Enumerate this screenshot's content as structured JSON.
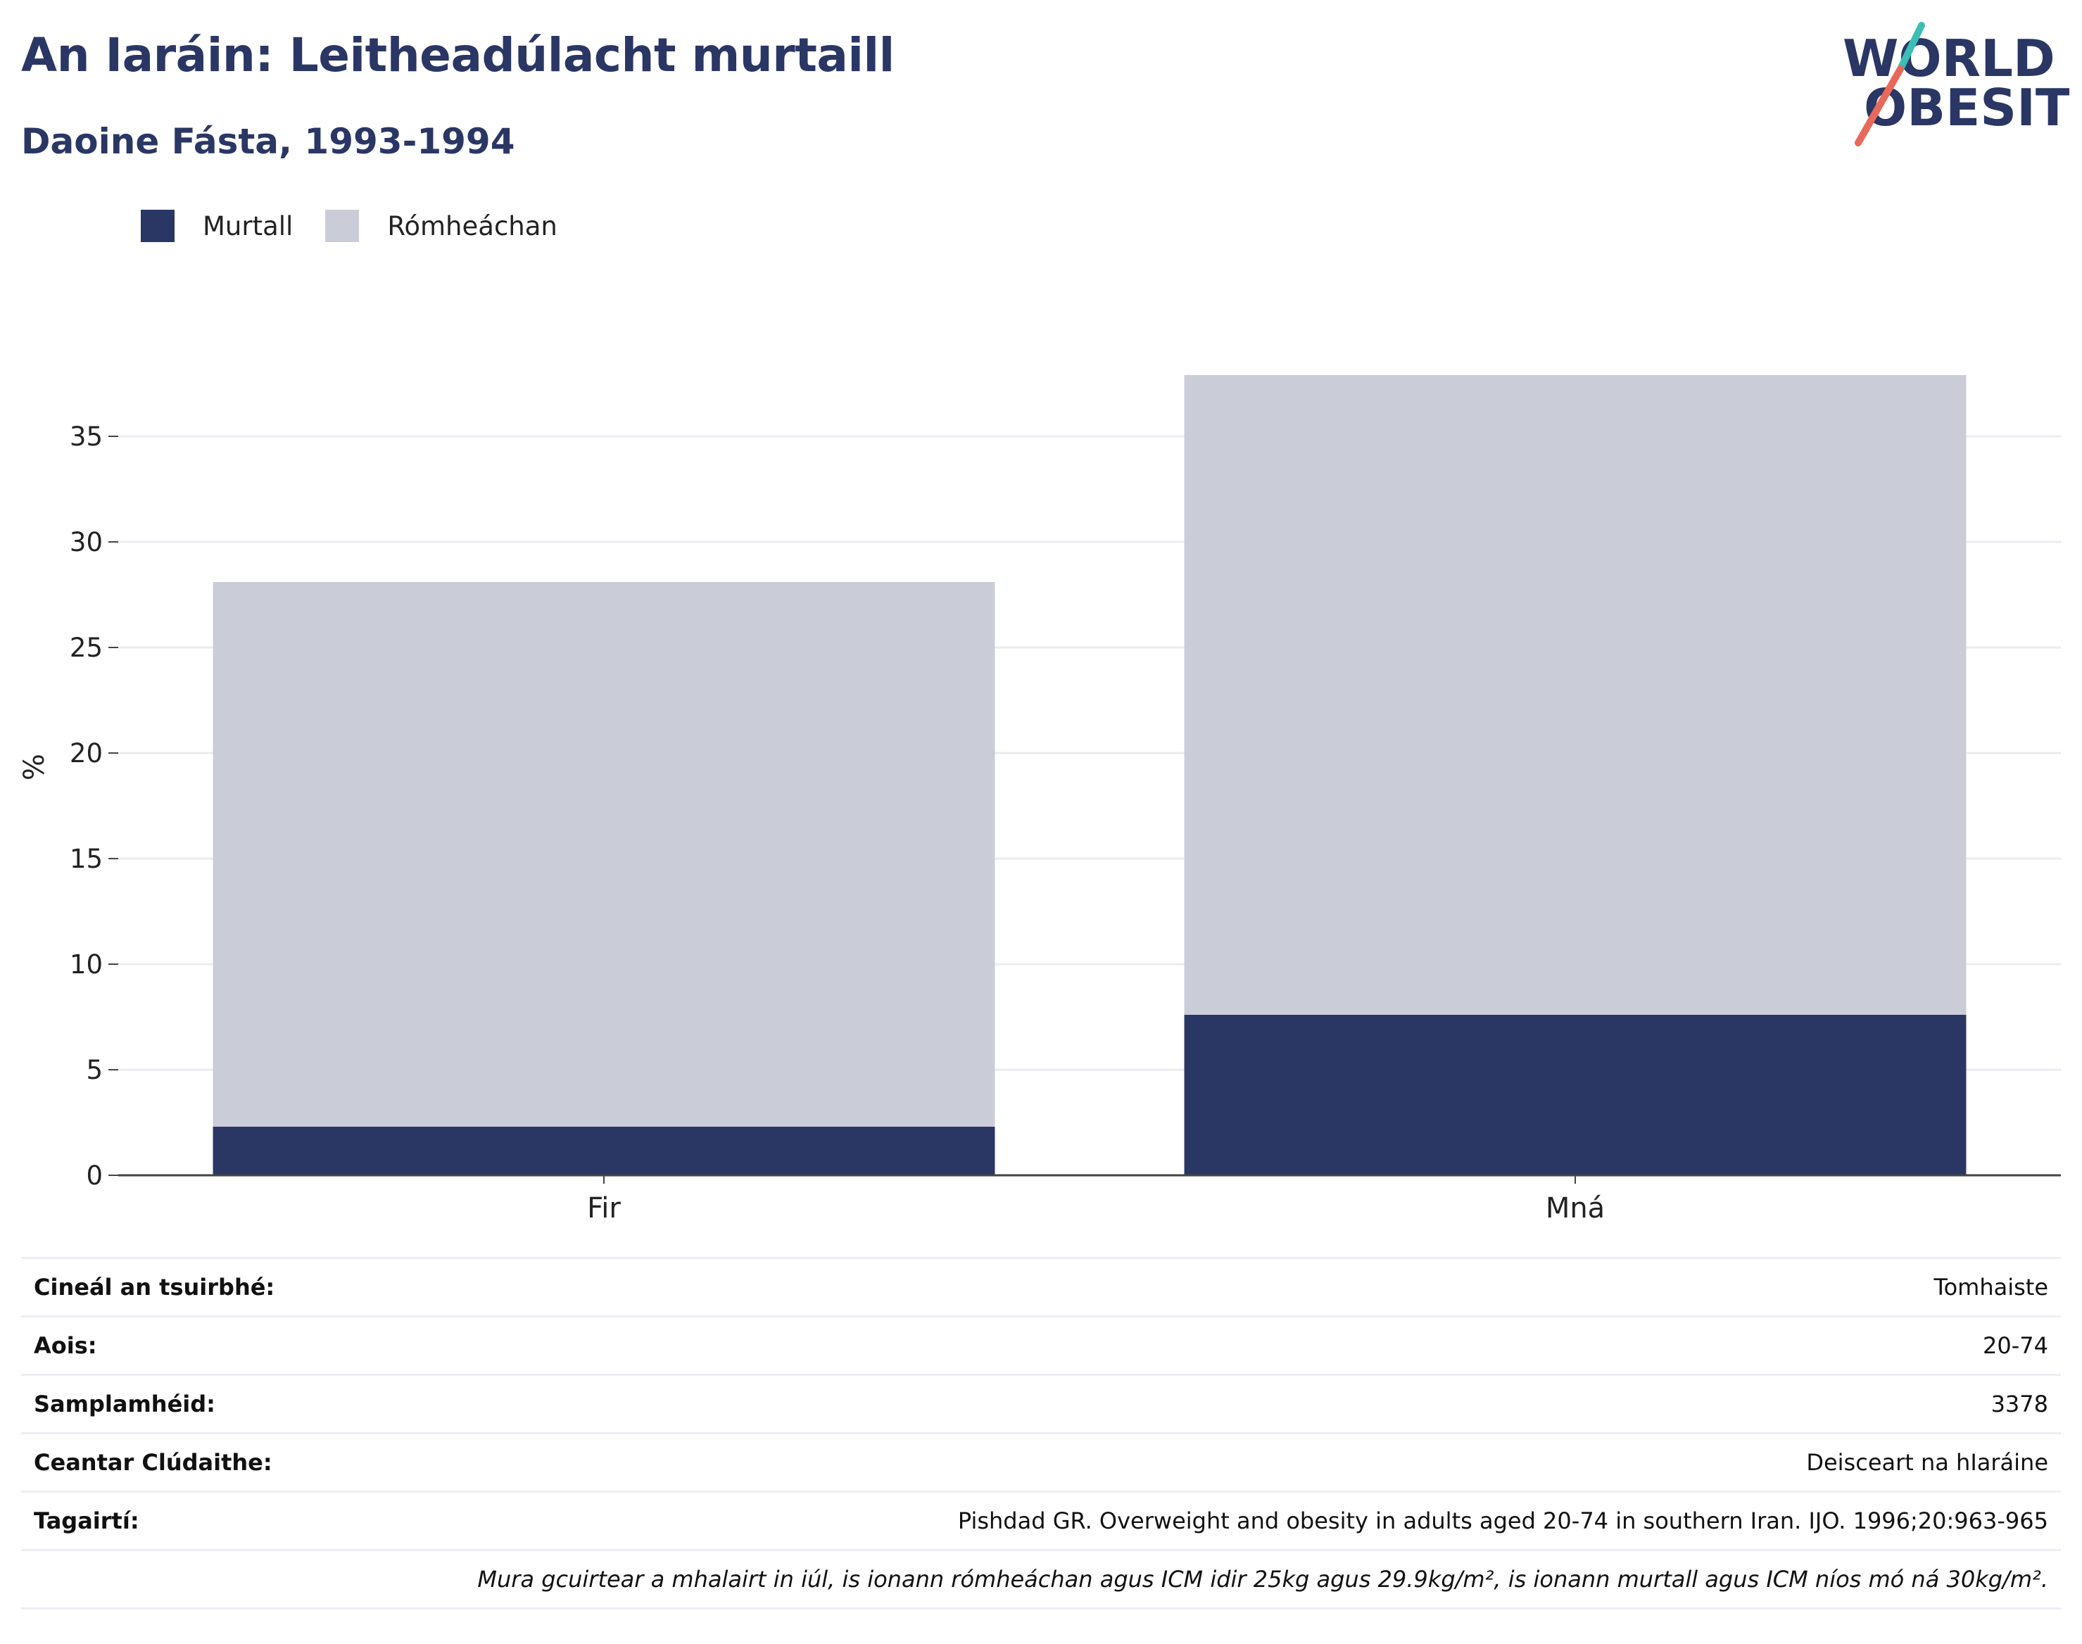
{
  "title": "An Iaráin: Leitheadúlacht murtaill",
  "subtitle": "Daoine Fásta, 1993-1994",
  "logo": {
    "line1": "WORLD",
    "line2": "OBESITY"
  },
  "colors": {
    "obese": "#2a3664",
    "overweight": "#caccd8",
    "title": "#2a3664",
    "logo_teal": "#3bbfb5",
    "logo_red": "#e8685a"
  },
  "chart_data": {
    "type": "bar",
    "stacked": true,
    "categories": [
      "Fir",
      "Mná"
    ],
    "series": [
      {
        "name": "Murtall",
        "values": [
          2.3,
          7.6
        ]
      },
      {
        "name": "Rómheáchan",
        "values": [
          25.8,
          30.3
        ]
      }
    ],
    "ylabel": "%",
    "xlabel": "",
    "ylim": [
      0,
      38
    ],
    "yticks": [
      0,
      5,
      10,
      15,
      20,
      25,
      30,
      35
    ],
    "grid": true,
    "legend": "top-left"
  },
  "info": {
    "rows": [
      {
        "label": "Cineál an tsuirbhé:",
        "value": "Tomhaiste"
      },
      {
        "label": "Aois:",
        "value": "20-74"
      },
      {
        "label": "Samplamhéid:",
        "value": "3378"
      },
      {
        "label": "Ceantar Clúdaithe:",
        "value": "Deisceart na hIaráine"
      },
      {
        "label": "Tagairtí:",
        "value": "Pishdad GR. Overweight and obesity in adults aged 20-74 in southern Iran. IJO. 1996;20:963-965"
      }
    ],
    "note": "Mura gcuirtear a mhalairt in iúl, is ionann rómheáchan agus ICM idir 25kg agus 29.9kg/m², is ionann murtall agus ICM níos mó ná 30kg/m²."
  }
}
